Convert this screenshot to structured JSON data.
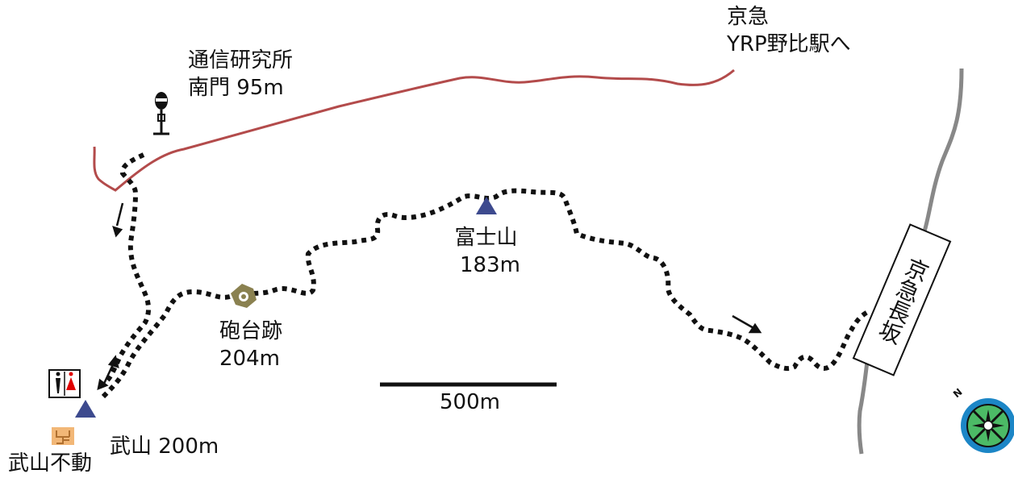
{
  "labels": {
    "station": {
      "line1": "京急",
      "line2": "YRP野比駅へ"
    },
    "research_gate": {
      "line1": "通信研究所",
      "line2": "南門 95m"
    },
    "fujiyama": {
      "name": "富士山",
      "elevation": "183m"
    },
    "battery_ruins": {
      "name": "砲台跡",
      "elevation": "204m"
    },
    "takeyama": {
      "name": "武山 200m"
    },
    "takeyama_fudo": {
      "name": "武山不動"
    },
    "scale": "500m",
    "slope": "京急長坂",
    "compass_north": "N"
  },
  "colors": {
    "road": "#b34b4b",
    "highway": "#888888",
    "trail": "#111111",
    "summit": "#3d4a8e",
    "ruins": "#8a8150",
    "temple": "#f2b777",
    "toilet_female": "#e00000",
    "compass_ring": "#1c86c6",
    "compass_fill": "#4cba66"
  },
  "icons": [
    "bus-stop-icon",
    "summit-icon",
    "ruins-icon",
    "toilet-icon",
    "temple-icon",
    "compass-icon",
    "direction-arrow-icon"
  ]
}
